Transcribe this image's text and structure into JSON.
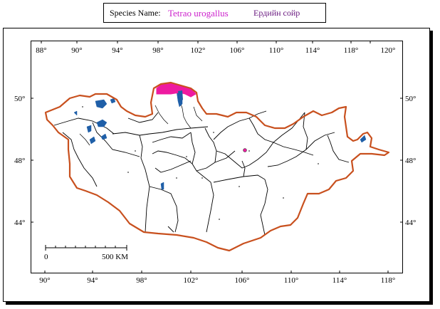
{
  "header": {
    "species_label": "Species Name:",
    "species_latin": "Tetrao urogallus",
    "species_local": "Ердийн сойр"
  },
  "colors": {
    "species_latin": "#cc22cc",
    "species_local": "#6a1a80",
    "border": "#c8501e",
    "lake": "#1f5fa8",
    "range": "#ee1aa0"
  },
  "map": {
    "top_longitudes": [
      "88°",
      "90°",
      "94°",
      "98°",
      "102°",
      "106°",
      "110°",
      "114°",
      "118°",
      "120°"
    ],
    "bottom_longitudes": [
      "90°",
      "94°",
      "98°",
      "102°",
      "106°",
      "110°",
      "114°",
      "118°"
    ],
    "left_latitudes": [
      "50°",
      "48°",
      "44°"
    ],
    "right_latitudes": [
      "50°",
      "48°",
      "44°"
    ],
    "scale_bar": {
      "start_label": "0",
      "end_label": "500 KM"
    }
  }
}
